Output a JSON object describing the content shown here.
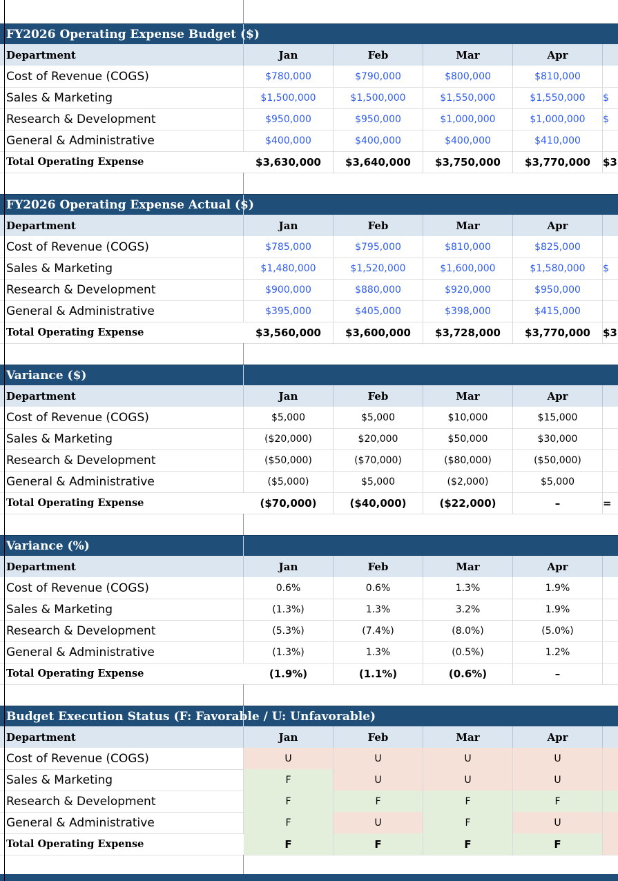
{
  "columns": [
    "Jan",
    "Feb",
    "Mar",
    "Apr"
  ],
  "department_header": "Department",
  "sections": [
    {
      "title": "FY2026 Operating Expense Budget ($)",
      "kind": "money",
      "rows": [
        {
          "label": "Cost of Revenue (COGS)",
          "values": [
            "$780,000",
            "$790,000",
            "$800,000",
            "$810,000"
          ],
          "overflow": ""
        },
        {
          "label": "Sales & Marketing",
          "values": [
            "$1,500,000",
            "$1,500,000",
            "$1,550,000",
            "$1,550,000"
          ],
          "overflow": "$"
        },
        {
          "label": "Research & Development",
          "values": [
            "$950,000",
            "$950,000",
            "$1,000,000",
            "$1,000,000"
          ],
          "overflow": "$"
        },
        {
          "label": "General & Administrative",
          "values": [
            "$400,000",
            "$400,000",
            "$400,000",
            "$410,000"
          ],
          "overflow": ""
        }
      ],
      "total": {
        "label": "Total Operating Expense",
        "values": [
          "$3,630,000",
          "$3,640,000",
          "$3,750,000",
          "$3,770,000"
        ],
        "overflow": "$3"
      }
    },
    {
      "title": "FY2026 Operating Expense Actual ($)",
      "kind": "money",
      "rows": [
        {
          "label": "Cost of Revenue (COGS)",
          "values": [
            "$785,000",
            "$795,000",
            "$810,000",
            "$825,000"
          ],
          "overflow": ""
        },
        {
          "label": "Sales & Marketing",
          "values": [
            "$1,480,000",
            "$1,520,000",
            "$1,600,000",
            "$1,580,000"
          ],
          "overflow": "$"
        },
        {
          "label": "Research & Development",
          "values": [
            "$900,000",
            "$880,000",
            "$920,000",
            "$950,000"
          ],
          "overflow": ""
        },
        {
          "label": "General & Administrative",
          "values": [
            "$395,000",
            "$405,000",
            "$398,000",
            "$415,000"
          ],
          "overflow": ""
        }
      ],
      "total": {
        "label": "Total Operating Expense",
        "values": [
          "$3,560,000",
          "$3,600,000",
          "$3,728,000",
          "$3,770,000"
        ],
        "overflow": "$3"
      }
    },
    {
      "title": "Variance ($)",
      "kind": "variance",
      "rows": [
        {
          "label": "Cost of Revenue (COGS)",
          "values": [
            "$5,000",
            "$5,000",
            "$10,000",
            "$15,000"
          ],
          "overflow": ""
        },
        {
          "label": "Sales & Marketing",
          "values": [
            "($20,000)",
            "$20,000",
            "$50,000",
            "$30,000"
          ],
          "overflow": ""
        },
        {
          "label": "Research & Development",
          "values": [
            "($50,000)",
            "($70,000)",
            "($80,000)",
            "($50,000)"
          ],
          "overflow": ""
        },
        {
          "label": "General & Administrative",
          "values": [
            "($5,000)",
            "$5,000",
            "($2,000)",
            "$5,000"
          ],
          "overflow": ""
        }
      ],
      "total": {
        "label": "Total Operating Expense",
        "values": [
          "($70,000)",
          "($40,000)",
          "($22,000)",
          "–"
        ],
        "overflow": "="
      }
    },
    {
      "title": "Variance (%)",
      "kind": "variance",
      "rows": [
        {
          "label": "Cost of Revenue (COGS)",
          "values": [
            "0.6%",
            "0.6%",
            "1.3%",
            "1.9%"
          ],
          "overflow": ""
        },
        {
          "label": "Sales & Marketing",
          "values": [
            "(1.3%)",
            "1.3%",
            "3.2%",
            "1.9%"
          ],
          "overflow": ""
        },
        {
          "label": "Research & Development",
          "values": [
            "(5.3%)",
            "(7.4%)",
            "(8.0%)",
            "(5.0%)"
          ],
          "overflow": ""
        },
        {
          "label": "General & Administrative",
          "values": [
            "(1.3%)",
            "1.3%",
            "(0.5%)",
            "1.2%"
          ],
          "overflow": ""
        }
      ],
      "total": {
        "label": "Total Operating Expense",
        "values": [
          "(1.9%)",
          "(1.1%)",
          "(0.6%)",
          "–"
        ],
        "overflow": ""
      }
    },
    {
      "title": "Budget Execution Status (F: Favorable / U: Unfavorable)",
      "kind": "status",
      "rows": [
        {
          "label": "Cost of Revenue (COGS)",
          "values": [
            "U",
            "U",
            "U",
            "U"
          ],
          "overflow": ""
        },
        {
          "label": "Sales & Marketing",
          "values": [
            "F",
            "U",
            "U",
            "U"
          ],
          "overflow": ""
        },
        {
          "label": "Research & Development",
          "values": [
            "F",
            "F",
            "F",
            "F"
          ],
          "overflow": ""
        },
        {
          "label": "General & Administrative",
          "values": [
            "F",
            "U",
            "F",
            "U"
          ],
          "overflow": ""
        }
      ],
      "total": {
        "label": "Total Operating Expense",
        "values": [
          "F",
          "F",
          "F",
          "F"
        ],
        "overflow": ""
      }
    }
  ],
  "colors": {
    "section_header_bg": "#1f4e79",
    "column_header_bg": "#dce6f1",
    "input_value_blue": "#2f5cf0",
    "favorable_bg": "#e3efda",
    "unfavorable_bg": "#f6e1d8"
  }
}
